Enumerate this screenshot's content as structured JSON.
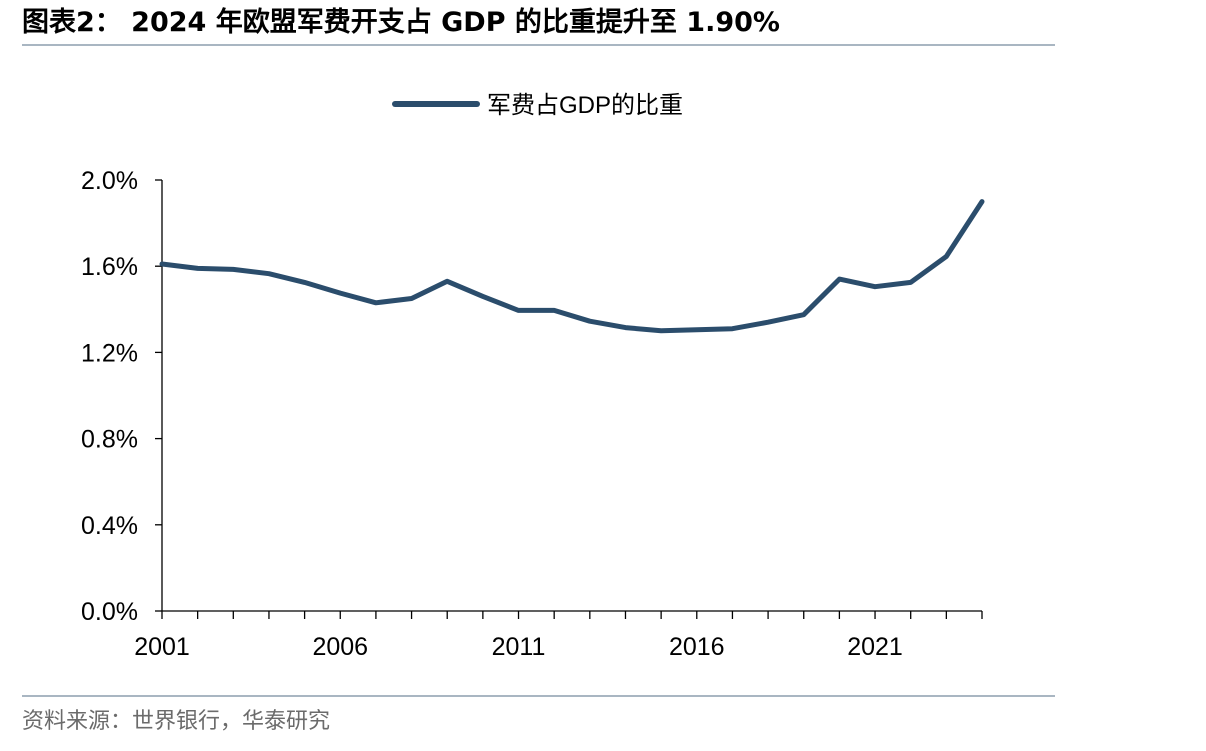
{
  "figure": {
    "title": "图表2：  2024 年欧盟军费开支占 GDP 的比重提升至 1.90%",
    "source": "资料来源：世界银行，华泰研究"
  },
  "colors": {
    "series": "#2b4d6c",
    "axis": "#000000",
    "rule": "#a9b6c2"
  },
  "chart_data": {
    "type": "line",
    "legend_position": "top-center",
    "grid": false,
    "x": [
      2001,
      2002,
      2003,
      2004,
      2005,
      2006,
      2007,
      2008,
      2009,
      2010,
      2011,
      2012,
      2013,
      2014,
      2015,
      2016,
      2017,
      2018,
      2019,
      2020,
      2021,
      2022,
      2023,
      2024
    ],
    "x_tick_labels": [
      "2001",
      "2006",
      "2011",
      "2016",
      "2021"
    ],
    "x_tick_values": [
      2001,
      2006,
      2011,
      2016,
      2021
    ],
    "xlim": [
      2001,
      2024
    ],
    "y_tick_labels": [
      "0.0%",
      "0.4%",
      "0.8%",
      "1.2%",
      "1.6%",
      "2.0%"
    ],
    "y_tick_values": [
      0,
      0.4,
      0.8,
      1.2,
      1.6,
      2.0
    ],
    "ylim": [
      0,
      2.0
    ],
    "series": [
      {
        "name": "军费占GDP的比重",
        "values": [
          1.61,
          1.59,
          1.585,
          1.565,
          1.525,
          1.475,
          1.43,
          1.45,
          1.53,
          1.46,
          1.395,
          1.395,
          1.345,
          1.315,
          1.3,
          1.305,
          1.31,
          1.34,
          1.375,
          1.54,
          1.505,
          1.525,
          1.645,
          1.9
        ]
      }
    ]
  }
}
